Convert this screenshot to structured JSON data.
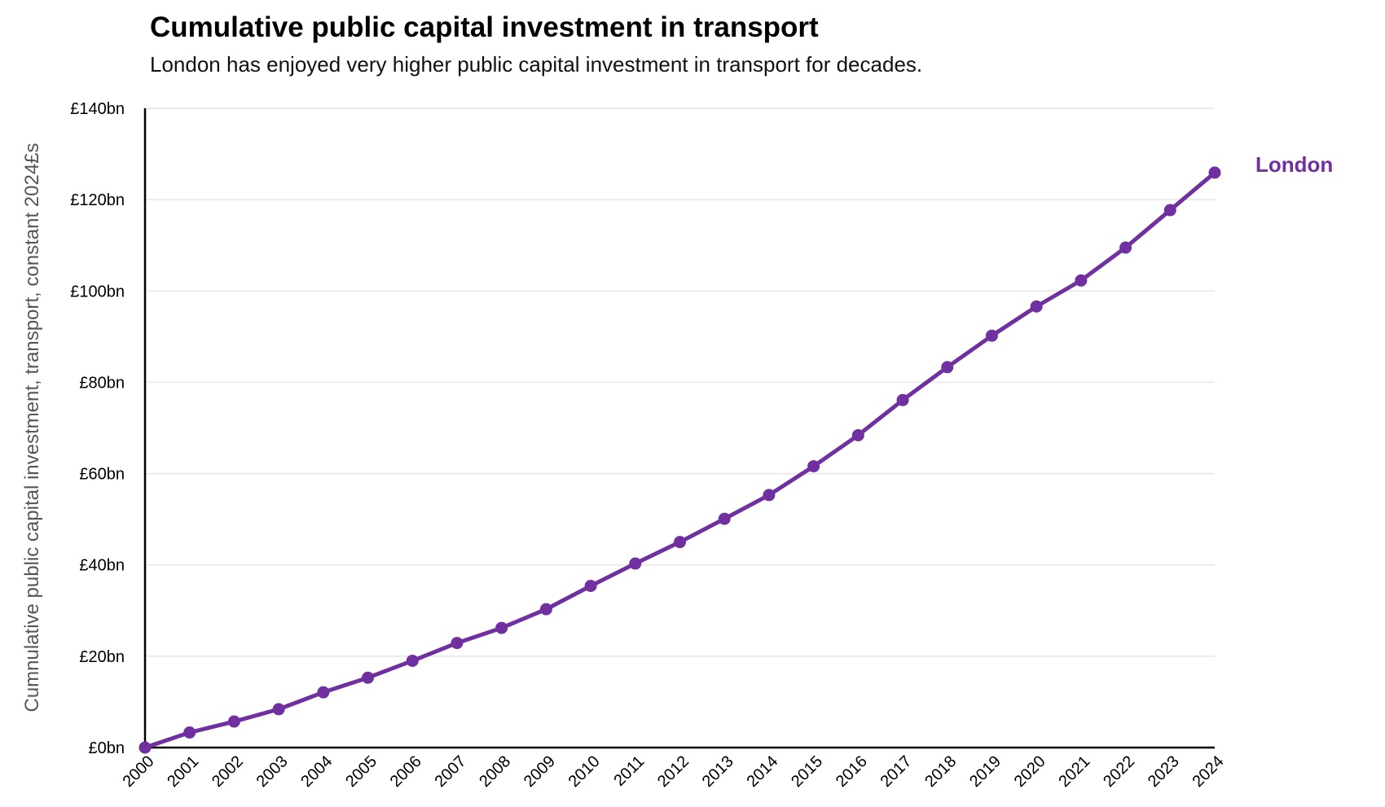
{
  "chart_data": {
    "type": "line",
    "title": "Cumulative public capital investment in transport",
    "subtitle": "London has enjoyed very higher public capital investment in transport for decades.",
    "xlabel": "",
    "ylabel": "Cumnulative public capital investment, transport, constant 2024£s",
    "x": [
      "2000",
      "2001",
      "2002",
      "2003",
      "2004",
      "2005",
      "2006",
      "2007",
      "2008",
      "2009",
      "2010",
      "2011",
      "2012",
      "2013",
      "2014",
      "2015",
      "2016",
      "2017",
      "2018",
      "2019",
      "2020",
      "2021",
      "2022",
      "2023",
      "2024"
    ],
    "series": [
      {
        "name": "London",
        "color": "#7030A0",
        "values": [
          0,
          3.3,
          5.7,
          8.4,
          12.1,
          15.3,
          19.0,
          22.9,
          26.2,
          30.3,
          35.4,
          40.3,
          45.0,
          50.1,
          55.3,
          61.6,
          68.4,
          76.1,
          83.3,
          90.2,
          96.6,
          102.3,
          109.5,
          117.7,
          125.9
        ]
      }
    ],
    "ylim": [
      0,
      140
    ],
    "yticks": [
      0,
      20,
      40,
      60,
      80,
      100,
      120,
      140
    ],
    "ytick_labels": [
      "£0bn",
      "£20bn",
      "£40bn",
      "£60bn",
      "£80bn",
      "£100bn",
      "£120bn",
      "£140bn"
    ],
    "grid": "horizontal",
    "legend": "direct label at line end"
  }
}
